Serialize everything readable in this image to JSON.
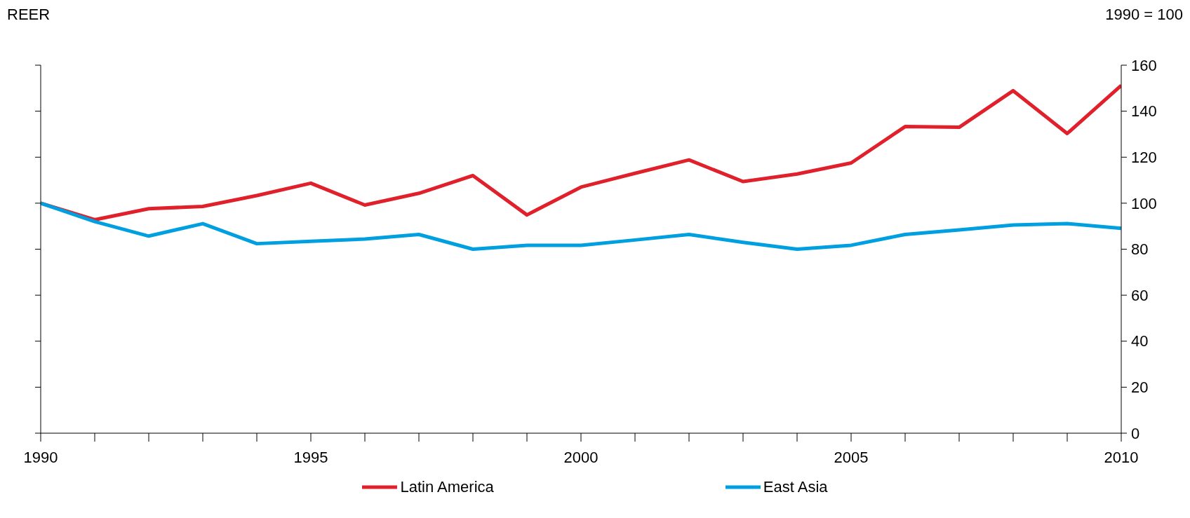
{
  "chart_data": {
    "type": "line",
    "ylabel": "REER",
    "annotations": [
      "1990 = 100"
    ],
    "x": [
      1990,
      1991,
      1992,
      1993,
      1994,
      1995,
      1996,
      1997,
      1998,
      1999,
      2000,
      2001,
      2002,
      2003,
      2004,
      2005,
      2006,
      2007,
      2008,
      2009,
      2010
    ],
    "series": [
      {
        "name": "Latin America",
        "color": "#e0202a",
        "values": [
          100,
          92.8,
          97.6,
          98.6,
          103.3,
          108.7,
          99.2,
          104.3,
          112,
          94.9,
          107,
          113,
          118.8,
          109.4,
          112.7,
          117.5,
          133.3,
          133,
          148.9,
          130.3,
          151.2
        ]
      },
      {
        "name": "East Asia",
        "color": "#00a0e0",
        "values": [
          100,
          92,
          85.7,
          91.1,
          82.4,
          83.4,
          84.4,
          86.4,
          80,
          81.7,
          81.7,
          84,
          86.4,
          83,
          80,
          81.7,
          86.4,
          88.4,
          90.5,
          91.1,
          89.1
        ]
      }
    ],
    "xlim": [
      1990,
      2010
    ],
    "xticks": [
      1990,
      {
        "value": 1991,
        "label": null
      },
      {
        "value": 1992,
        "label": null
      },
      {
        "value": 1993,
        "label": null
      },
      {
        "value": 1994,
        "label": null
      },
      1995,
      {
        "value": 1996,
        "label": null
      },
      {
        "value": 1997,
        "label": null
      },
      {
        "value": 1998,
        "label": null
      },
      {
        "value": 1999,
        "label": null
      },
      2000,
      {
        "value": 2001,
        "label": null
      },
      {
        "value": 2002,
        "label": null
      },
      {
        "value": 2003,
        "label": null
      },
      {
        "value": 2004,
        "label": null
      },
      2005,
      {
        "value": 2006,
        "label": null
      },
      {
        "value": 2007,
        "label": null
      },
      {
        "value": 2008,
        "label": null
      },
      {
        "value": 2009,
        "label": null
      },
      2010
    ],
    "ylim": [
      0,
      160
    ],
    "yticks": [
      0,
      20,
      40,
      60,
      80,
      100,
      120,
      140,
      160
    ],
    "grid": false,
    "legend": "bottom",
    "marker": "none",
    "line_style": "solid"
  }
}
